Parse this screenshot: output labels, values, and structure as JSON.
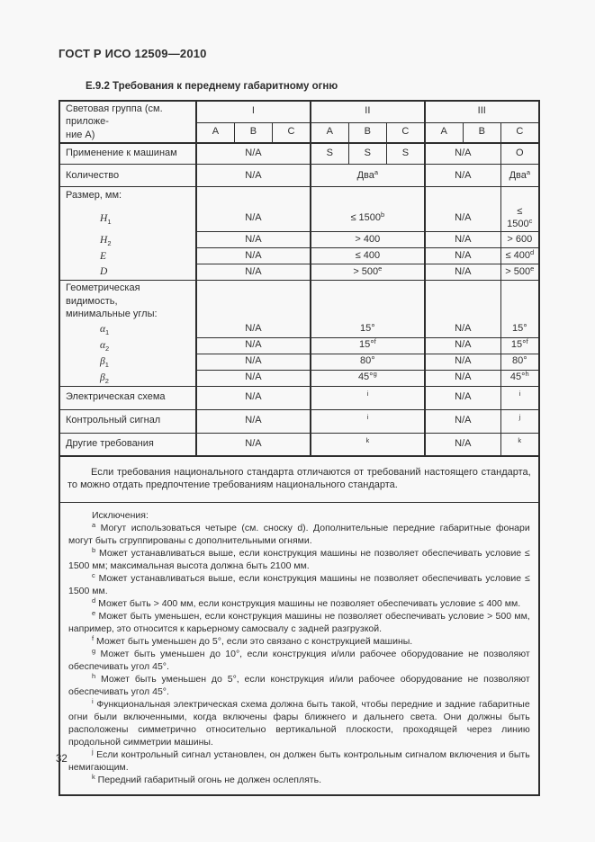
{
  "doc": {
    "header": "ГОСТ Р ИСО 12509—2010",
    "section_title": "Е.9.2 Требования к переднему габаритному огню",
    "page_number": "32"
  },
  "t": {
    "header": {
      "label_line1": "Световая группа (см. приложе-",
      "label_line2": "ние А)",
      "groups": [
        "I",
        "II",
        "III"
      ],
      "subcols": [
        "A",
        "B",
        "C"
      ]
    },
    "r_apply": {
      "label": "Применение к машинам",
      "g1": "N/A",
      "iiA": "S",
      "iiB": "S",
      "iiC": "S",
      "g3ab": "N/A",
      "g3c": "О"
    },
    "r_qty": {
      "label": "Количество",
      "g1": "N/A",
      "g2": "Два",
      "g2sup": "a",
      "g3ab": "N/A",
      "g3c": "Два",
      "g3csup": "a"
    },
    "size": {
      "label": "Размер, мм:",
      "rows": [
        {
          "sym": "H",
          "sub": "1",
          "g1": "N/A",
          "g2": "≤ 1500",
          "g2sup": "b",
          "g3ab": "N/A",
          "g3c": "≤ 1500",
          "g3csup": "c"
        },
        {
          "sym": "H",
          "sub": "2",
          "g1": "N/A",
          "g2": "> 400",
          "g2sup": "",
          "g3ab": "N/A",
          "g3c": "> 600",
          "g3csup": ""
        },
        {
          "sym": "E",
          "sub": "",
          "g1": "N/A",
          "g2": "≤ 400",
          "g2sup": "",
          "g3ab": "N/A",
          "g3c": "≤ 400",
          "g3csup": "d"
        },
        {
          "sym": "D",
          "sub": "",
          "g1": "N/A",
          "g2": "> 500",
          "g2sup": "e",
          "g3ab": "N/A",
          "g3c": "> 500",
          "g3csup": "e"
        }
      ]
    },
    "geom": {
      "label_line1": "Геометрическая видимость,",
      "label_line2": "минимальные углы:",
      "rows": [
        {
          "sym": "α",
          "sub": "1",
          "g1": "N/A",
          "g2": "15°",
          "g2sup": "",
          "g3ab": "N/A",
          "g3c": "15°",
          "g3csup": ""
        },
        {
          "sym": "α",
          "sub": "2",
          "g1": "N/A",
          "g2": "15°",
          "g2sup": "f",
          "g3ab": "N/A",
          "g3c": "15°",
          "g3csup": "f"
        },
        {
          "sym": "β",
          "sub": "1",
          "g1": "N/A",
          "g2": "80°",
          "g2sup": "",
          "g3ab": "N/A",
          "g3c": "80°",
          "g3csup": ""
        },
        {
          "sym": "β",
          "sub": "2",
          "g1": "N/A",
          "g2": "45°",
          "g2sup": "g",
          "g3ab": "N/A",
          "g3c": "45°",
          "g3csup": "h"
        }
      ]
    },
    "r_elec": {
      "label": "Электрическая схема",
      "g1": "N/A",
      "g2sup": "i",
      "g3ab": "N/A",
      "g3csup": "i"
    },
    "r_signal": {
      "label": "Контрольный сигнал",
      "g1": "N/A",
      "g2sup": "i",
      "g3ab": "N/A",
      "g3csup": "j"
    },
    "r_other": {
      "label": "Другие требования",
      "g1": "N/A",
      "g2sup": "k",
      "g3ab": "N/A",
      "g3csup": "k"
    },
    "note": "Если требования национального стандарта отличаются от требований настоящего стандарта, то можно отдать предпочтение требованиям национального стандарта.",
    "exceptions": {
      "title": "Исключения:",
      "items": [
        {
          "sup": "a",
          "text": "Могут использоваться четыре (см. сноску d). Дополнительные передние габаритные фонари могут быть сгруппированы с дополнительными огнями."
        },
        {
          "sup": "b",
          "text": "Может устанавливаться выше, если конструкция машины не позволяет обеспечивать условие ≤ 1500 мм; максимальная высота должна быть 2100 мм."
        },
        {
          "sup": "c",
          "text": "Может устанавливаться выше, если конструкция машины не позволяет обеспечивать условие ≤ 1500 мм."
        },
        {
          "sup": "d",
          "text": "Может быть > 400 мм, если конструкция машины не позволяет обеспечивать условие ≤ 400 мм."
        },
        {
          "sup": "e",
          "text": "Может быть уменьшен, если конструкция машины не позволяет обеспечивать условие > 500 мм, например, это относится к карьерному самосвалу с задней разгрузкой."
        },
        {
          "sup": "f",
          "text": "Может быть уменьшен до 5°, если это связано с конструкцией машины."
        },
        {
          "sup": "g",
          "text": "Может быть уменьшен до 10°, если конструкция и/или рабочее оборудование не позволяют обеспечивать угол 45°."
        },
        {
          "sup": "h",
          "text": "Может быть уменьшен до 5°, если конструкция и/или рабочее оборудование не позволяют обеспечивать угол 45°."
        },
        {
          "sup": "i",
          "text": "Функциональная электрическая схема должна быть такой, чтобы передние и задние габаритные огни были включенными, когда включены фары ближнего и дальнего света. Они должны быть расположены симметрично относительно вертикальной плоскости, проходящей через линию продольной симметрии машины."
        },
        {
          "sup": "j",
          "text": "Если контрольный сигнал установлен, он должен быть контрольным сигналом включения и быть немигающим."
        },
        {
          "sup": "k",
          "text": "Передний габаритный огонь не должен ослеплять."
        }
      ]
    }
  }
}
